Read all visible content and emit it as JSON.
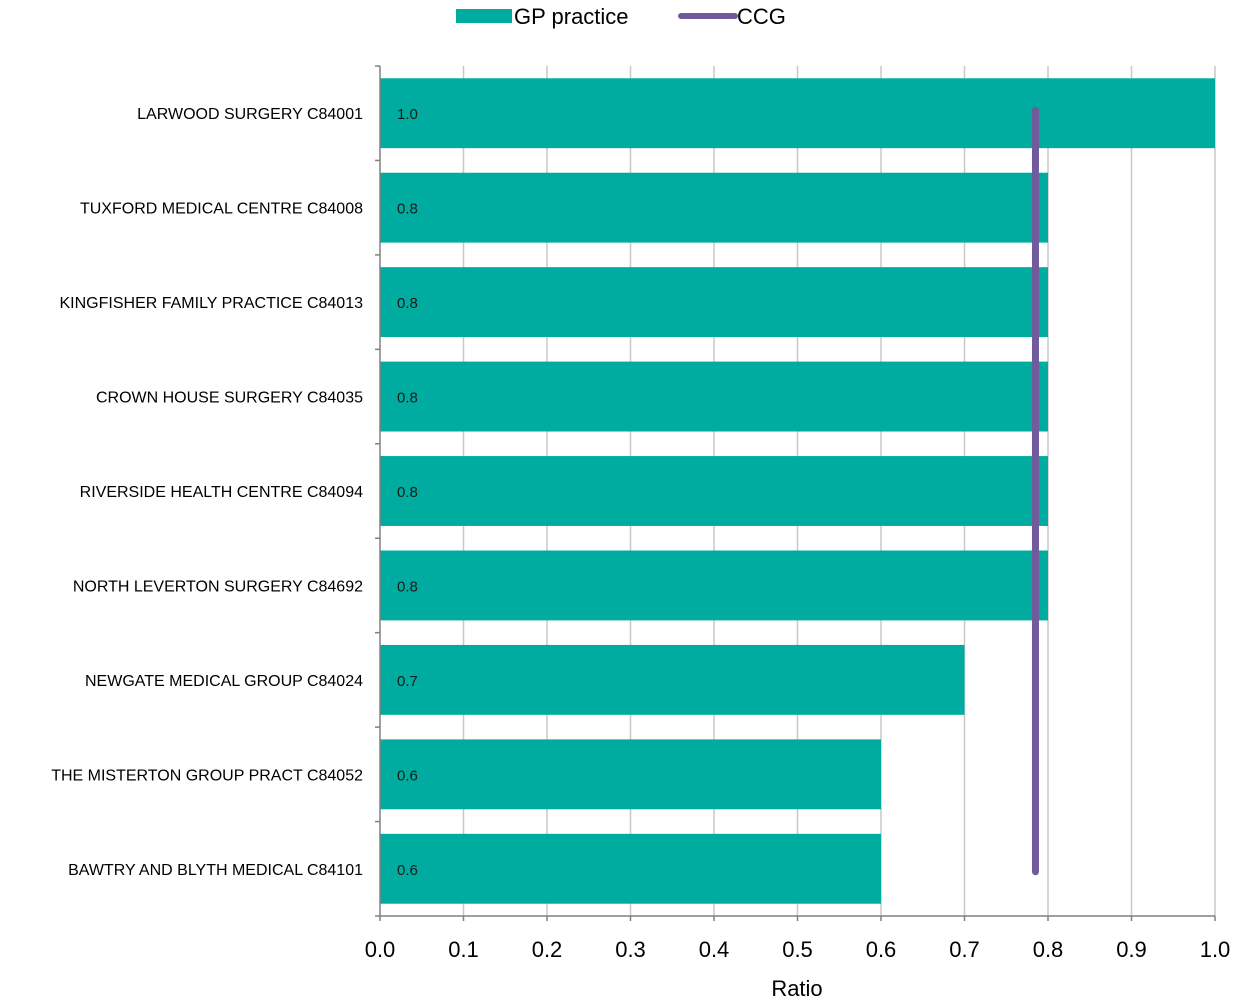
{
  "chart_data": {
    "type": "bar",
    "orientation": "horizontal",
    "categories": [
      "LARWOOD SURGERY C84001",
      "TUXFORD MEDICAL CENTRE C84008",
      "KINGFISHER FAMILY PRACTICE C84013",
      "CROWN HOUSE SURGERY C84035",
      "RIVERSIDE HEALTH CENTRE C84094",
      "NORTH LEVERTON SURGERY C84692",
      "NEWGATE MEDICAL GROUP C84024",
      "THE MISTERTON GROUP PRACT C84052",
      "BAWTRY AND BLYTH MEDICAL C84101"
    ],
    "series": [
      {
        "name": "GP practice",
        "type": "bar",
        "color": "#00ac9f",
        "values": [
          1.0,
          0.8,
          0.8,
          0.8,
          0.8,
          0.8,
          0.7,
          0.6,
          0.6
        ],
        "labels": [
          "1.0",
          "0.8",
          "0.8",
          "0.8",
          "0.8",
          "0.8",
          "0.7",
          "0.6",
          "0.6"
        ]
      },
      {
        "name": "CCG",
        "type": "line",
        "color": "#725b9c",
        "value": 0.785
      }
    ],
    "xlabel": "Ratio",
    "ylabel": "",
    "xlim": [
      0,
      1
    ],
    "xticks": [
      "0.0",
      "0.1",
      "0.2",
      "0.3",
      "0.4",
      "0.5",
      "0.6",
      "0.7",
      "0.8",
      "0.9",
      "1.0"
    ],
    "grid": "vertical",
    "legend_position": "top-center"
  }
}
